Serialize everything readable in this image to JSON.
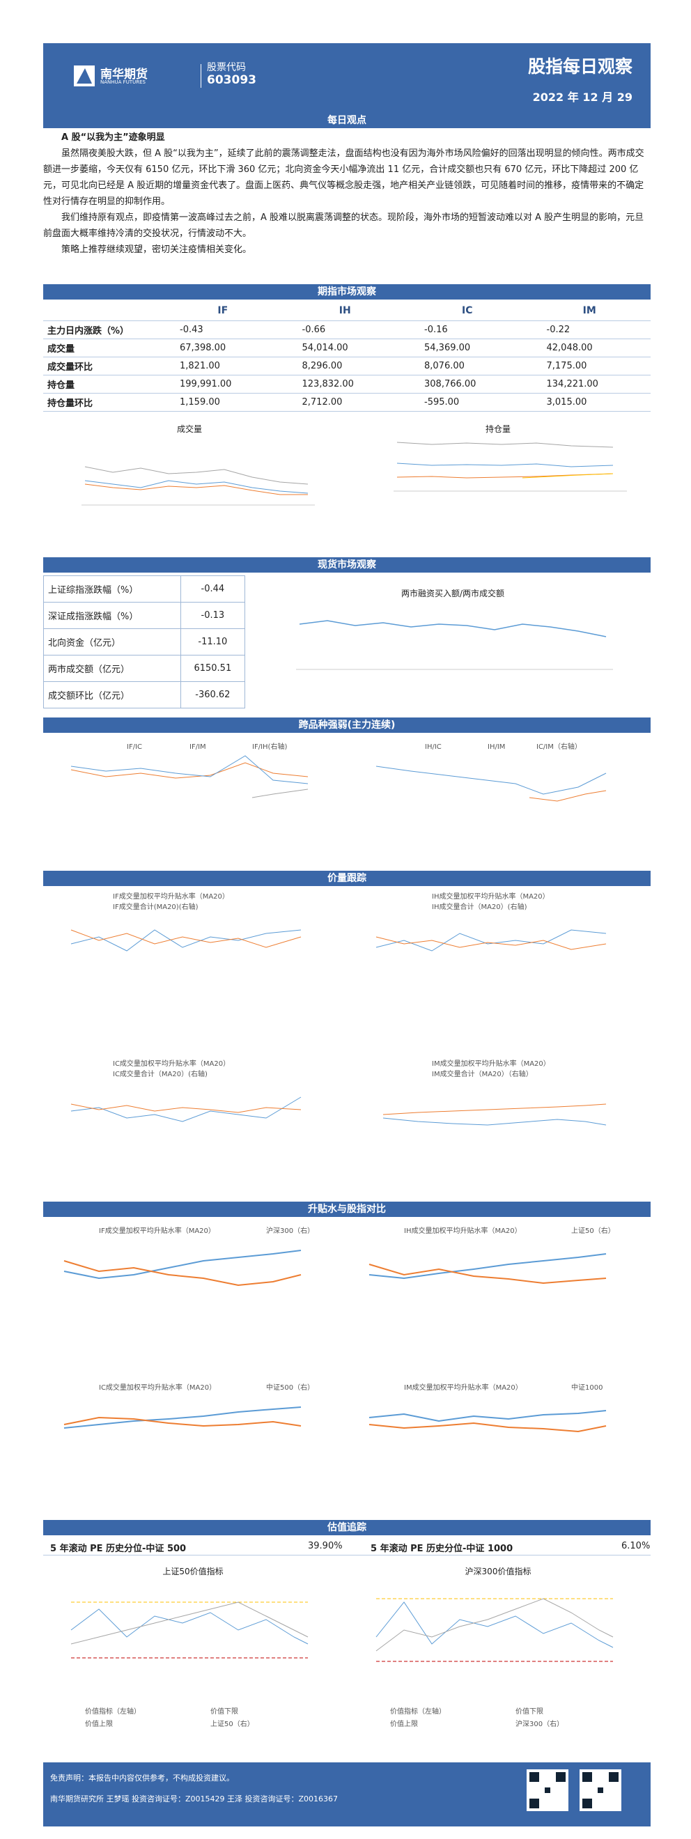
{
  "header": {
    "company": "南华期货",
    "company_en": "NANHUA FUTURES",
    "code_label": "股票代码",
    "code": "603093",
    "title": "股指每日观察",
    "date": "2022 年 12 月 29"
  },
  "sections": {
    "daily": "每日观点",
    "futures": "期指市场观察",
    "spot": "现货市场观察",
    "spread": "跨品种强弱(主力连续)",
    "price": "价量跟踪",
    "basis": "升贴水与股指对比",
    "valuation": "估值追踪"
  },
  "daily": {
    "headline": "A 股“以我为主”迹象明显",
    "p1": "虽然隔夜美股大跌，但 A 股“以我为主”，延续了此前的震荡调整走法，盘面结构也没有因为海外市场风险偏好的回落出现明显的倾向性。两市成交额进一步萎缩，今天仅有 6150 亿元，环比下滑 360 亿元；北向资金今天小幅净流出 11 亿元，合计成交额也只有 670 亿元，环比下降超过 200 亿元，可见北向已经是 A 股近期的增量资金代表了。盘面上医药、典气仪等概念股走强，地产相关产业链领跌，可见随着时间的推移，疫情带来的不确定性对行情存在明显的抑制作用。",
    "p2": "我们维持原有观点，即疫情第一波高峰过去之前，A 股难以脱离震荡调整的状态。现阶段，海外市场的短暂波动难以对 A 股产生明显的影响，元旦前盘面大概率维持冷清的交投状况，行情波动不大。",
    "p3": "策略上推荐继续观望，密切关注疫情相关变化。"
  },
  "futures_table": {
    "headers": [
      "IF",
      "IH",
      "IC",
      "IM"
    ],
    "rows": [
      {
        "label": "主力日内涨跌（%）",
        "values": [
          "-0.43",
          "-0.66",
          "-0.16",
          "-0.22"
        ]
      },
      {
        "label": "成交量",
        "values": [
          "67,398.00",
          "54,014.00",
          "54,369.00",
          "42,048.00"
        ]
      },
      {
        "label": "成交量环比",
        "values": [
          "1,821.00",
          "8,296.00",
          "8,076.00",
          "7,175.00"
        ]
      },
      {
        "label": "持仓量",
        "values": [
          "199,991.00",
          "123,832.00",
          "308,766.00",
          "134,221.00"
        ]
      },
      {
        "label": "持仓量环比",
        "values": [
          "1,159.00",
          "2,712.00",
          "-595.00",
          "3,015.00"
        ]
      }
    ]
  },
  "spot_table": {
    "rows": [
      {
        "label": "上证综指涨跌幅（%）",
        "value": "-0.44"
      },
      {
        "label": "深证成指涨跌幅（%）",
        "value": "-0.13"
      },
      {
        "label": "北向资金（亿元）",
        "value": "-11.10"
      },
      {
        "label": "两市成交额（亿元）",
        "value": "6150.51"
      },
      {
        "label": "成交额环比（亿元）",
        "value": "-360.62"
      }
    ]
  },
  "charts": {
    "volume": "成交量",
    "oi": "持仓量",
    "margin": "两市融资买入额/两市成交额",
    "if_ic": "IF/IC",
    "if_im": "IF/IM",
    "if_ih": "IF/IH(右轴)",
    "ih_ic": "IH/IC",
    "ih_im": "IH/IM",
    "ic_im": "IC/IM（右轴）",
    "pv1a": "IF成交量加权平均升贴水率（MA20）",
    "pv1b": "IF成交量合计(MA20)(右轴)",
    "pv2a": "IH成交量加权平均升贴水率（MA20）",
    "pv2b": "IH成交量合计（MA20）(右轴)",
    "pv3a": "IC成交量加权平均升贴水率（MA20）",
    "pv3b": "IC成交量合计（MA20）(右轴)",
    "pv4a": "IM成交量加权平均升贴水率（MA20）",
    "pv4b": "IM成交量合计（MA20）（右轴）",
    "bs1a": "IF成交量加权平均升贴水率（MA20）",
    "bs1b": "沪深300（右）",
    "bs2a": "IH成交量加权平均升贴水率（MA20）",
    "bs2b": "上证50（右）",
    "bs3a": "IC成交量加权平均升贴水率（MA20）",
    "bs3b": "中证500（右）",
    "bs4a": "IM成交量加权平均升贴水率（MA20）",
    "bs4b": "中证1000",
    "val1": "上证50价值指标",
    "val2": "沪深300价值指标",
    "val_l1": "价值指标（左轴）",
    "val_l2": "价值下限",
    "val_l3": "价值上限",
    "val_l4a": "上证50（右）",
    "val_l4b": "沪深300（右）"
  },
  "valuation": {
    "a_label": "5 年滚动 PE 历史分位-中证 500",
    "a_value": "39.90%",
    "b_label": "5 年滚动 PE 历史分位-中证 1000",
    "b_value": "6.10%"
  },
  "footer": {
    "line1": "免责声明：本报告中内容仅供参考，不构成投资建议。",
    "line2": "南华期货研究所  王梦瑶  投资咨询证号：Z0015429    王泽  投资咨询证号：Z0016367",
    "qr_label": "南华期货"
  },
  "colors": {
    "blue": "#3a67a8",
    "series": [
      "#5b9bd5",
      "#ed7d31",
      "#a5a5a5",
      "#ffc000"
    ]
  }
}
